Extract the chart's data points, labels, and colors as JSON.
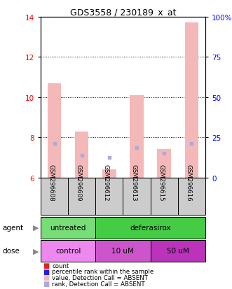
{
  "title": "GDS3558 / 230189_x_at",
  "samples": [
    "GSM296608",
    "GSM296609",
    "GSM296612",
    "GSM296613",
    "GSM296615",
    "GSM296616"
  ],
  "value_bars": [
    10.7,
    8.3,
    6.4,
    10.1,
    7.4,
    13.7
  ],
  "rank_dots": [
    7.7,
    7.1,
    7.0,
    7.5,
    7.2,
    7.7
  ],
  "bar_bottom": 6.0,
  "ylim_left": [
    6,
    14
  ],
  "ylim_right": [
    0,
    100
  ],
  "yticks_left": [
    6,
    8,
    10,
    12,
    14
  ],
  "yticks_right": [
    0,
    25,
    50,
    75,
    100
  ],
  "ytick_labels_right": [
    "0",
    "25",
    "50",
    "75",
    "100%"
  ],
  "bar_color": "#f4b8b8",
  "dot_color": "#aaaadd",
  "sample_box_color": "#cccccc",
  "agent_groups": [
    {
      "text": "untreated",
      "start": 0,
      "end": 2,
      "color": "#77dd77"
    },
    {
      "text": "deferasirox",
      "start": 2,
      "end": 6,
      "color": "#44cc44"
    }
  ],
  "dose_groups": [
    {
      "text": "control",
      "start": 0,
      "end": 2,
      "color": "#ee88ee"
    },
    {
      "text": "10 uM",
      "start": 2,
      "end": 4,
      "color": "#cc55cc"
    },
    {
      "text": "50 uM",
      "start": 4,
      "end": 6,
      "color": "#bb33bb"
    }
  ],
  "legend_items": [
    {
      "color": "#dd2222",
      "label": "count"
    },
    {
      "color": "#2222dd",
      "label": "percentile rank within the sample"
    },
    {
      "color": "#f4b8b8",
      "label": "value, Detection Call = ABSENT"
    },
    {
      "color": "#aaaadd",
      "label": "rank, Detection Call = ABSENT"
    }
  ],
  "fig_width": 3.31,
  "fig_height": 4.14
}
